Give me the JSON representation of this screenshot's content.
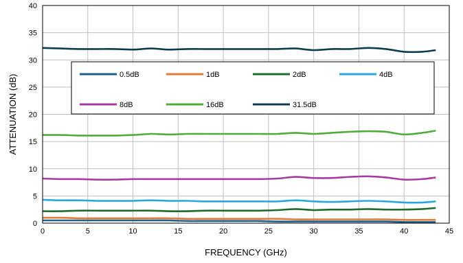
{
  "chart_data": {
    "type": "line",
    "title": "",
    "xlabel": "FREQUENCY (GHz)",
    "ylabel": "ATTENUATION (dB)",
    "xlim": [
      0,
      45
    ],
    "ylim": [
      0,
      40
    ],
    "xticks": [
      0,
      5,
      10,
      15,
      20,
      25,
      30,
      35,
      40,
      45
    ],
    "yticks": [
      0,
      5,
      10,
      15,
      20,
      25,
      30,
      35,
      40
    ],
    "grid": true,
    "legend_position": "inside-top",
    "x": [
      0,
      2,
      4,
      6,
      8,
      10,
      12,
      14,
      16,
      18,
      20,
      22,
      24,
      26,
      28,
      30,
      32,
      34,
      36,
      38,
      40,
      42,
      43.5
    ],
    "series": [
      {
        "name": "0.5dB",
        "color": "#1f5f8b",
        "values": [
          0.5,
          0.5,
          0.5,
          0.5,
          0.5,
          0.5,
          0.5,
          0.5,
          0.4,
          0.4,
          0.4,
          0.4,
          0.4,
          0.3,
          0.3,
          0.3,
          0.3,
          0.3,
          0.3,
          0.3,
          0.2,
          0.2,
          0.2
        ]
      },
      {
        "name": "1dB",
        "color": "#e07b39",
        "values": [
          1.0,
          1.0,
          0.9,
          0.9,
          0.9,
          0.9,
          0.9,
          0.9,
          0.8,
          0.8,
          0.8,
          0.8,
          0.8,
          0.8,
          0.7,
          0.7,
          0.7,
          0.7,
          0.7,
          0.7,
          0.6,
          0.6,
          0.6
        ]
      },
      {
        "name": "2dB",
        "color": "#1e6b2e",
        "values": [
          2.2,
          2.2,
          2.3,
          2.3,
          2.3,
          2.3,
          2.3,
          2.2,
          2.2,
          2.3,
          2.3,
          2.3,
          2.3,
          2.4,
          2.6,
          2.4,
          2.5,
          2.5,
          2.6,
          2.5,
          2.5,
          2.6,
          2.8
        ]
      },
      {
        "name": "4dB",
        "color": "#2ba7dc",
        "values": [
          4.3,
          4.2,
          4.2,
          4.1,
          4.1,
          4.1,
          4.2,
          4.1,
          4.1,
          4.0,
          4.0,
          4.0,
          4.0,
          4.0,
          4.2,
          4.0,
          3.9,
          4.0,
          4.1,
          4.0,
          3.8,
          3.8,
          4.0
        ]
      },
      {
        "name": "8dB",
        "color": "#a63ba1",
        "values": [
          8.2,
          8.1,
          8.1,
          8.0,
          8.0,
          8.1,
          8.1,
          8.1,
          8.1,
          8.1,
          8.1,
          8.1,
          8.1,
          8.2,
          8.5,
          8.3,
          8.3,
          8.5,
          8.6,
          8.4,
          8.0,
          8.1,
          8.4
        ]
      },
      {
        "name": "16dB",
        "color": "#4fab3a",
        "values": [
          16.2,
          16.2,
          16.1,
          16.1,
          16.1,
          16.2,
          16.4,
          16.3,
          16.4,
          16.4,
          16.4,
          16.4,
          16.4,
          16.4,
          16.6,
          16.4,
          16.6,
          16.8,
          16.9,
          16.8,
          16.3,
          16.6,
          17.0
        ]
      },
      {
        "name": "31.5dB",
        "color": "#0d3b4f",
        "values": [
          32.2,
          32.1,
          32.0,
          32.0,
          32.0,
          31.9,
          32.1,
          31.9,
          32.0,
          32.0,
          32.0,
          32.0,
          32.0,
          32.0,
          32.1,
          31.8,
          32.0,
          32.0,
          32.2,
          32.0,
          31.5,
          31.5,
          31.8
        ]
      }
    ]
  }
}
